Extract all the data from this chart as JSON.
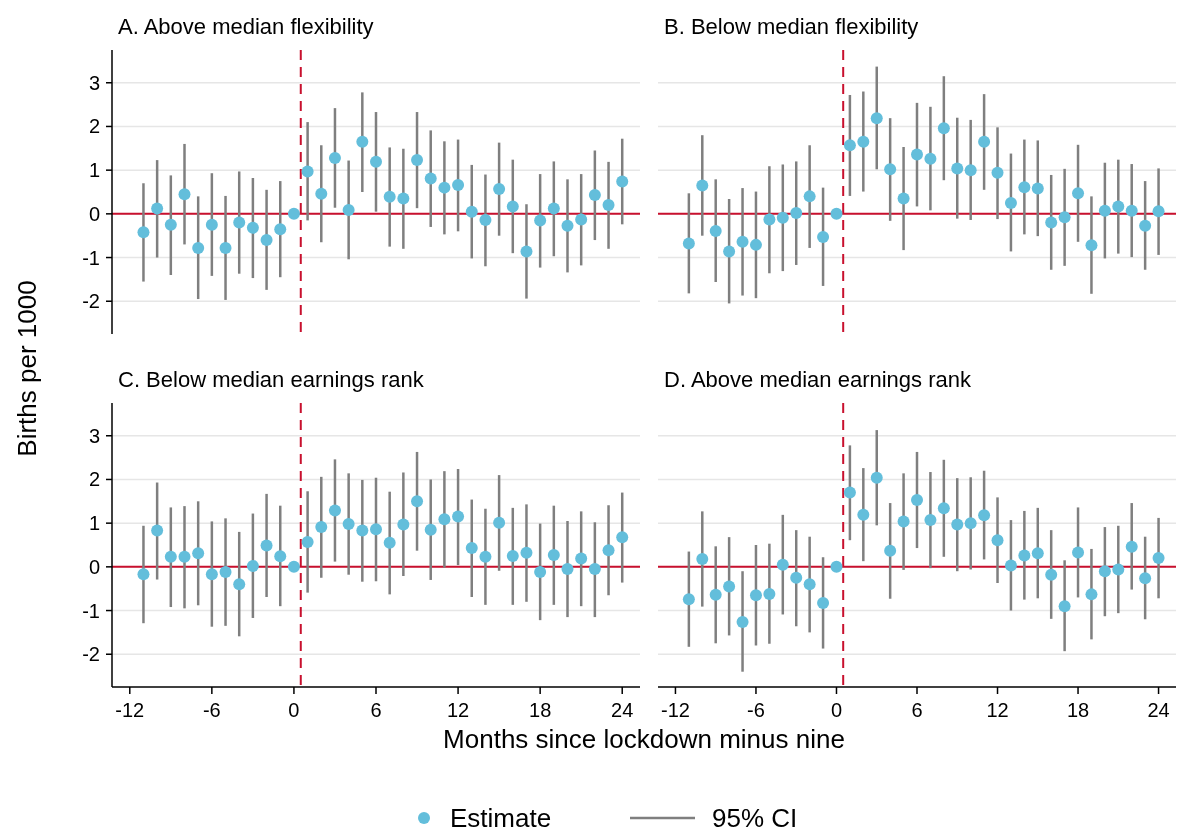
{
  "chart_data": [
    {
      "type": "scatter",
      "title": "A. Above median flexibility",
      "ylabel": "Births per 1000",
      "legend": "bottom",
      "annotations": [
        "95% CI"
      ],
      "marker": "circle",
      "grid": "y",
      "tick_labels": "y",
      "xlim": [
        -13.3,
        25.3
      ],
      "ylim": [
        -2.75,
        3.75
      ],
      "yticks": [
        -2,
        -1,
        0,
        1,
        2,
        3
      ],
      "ref_lines": [
        {
          "axis": "y",
          "value": 0,
          "color": "#c8102e",
          "line_style": "solid"
        },
        {
          "axis": "x",
          "value": 0.5,
          "color": "#c8102e",
          "line_style": "dashed"
        }
      ],
      "x": [
        -11,
        -10,
        -9,
        -8,
        -7,
        -6,
        -5,
        -4,
        -3,
        -2,
        -1,
        0,
        1,
        2,
        3,
        4,
        5,
        6,
        7,
        8,
        9,
        10,
        11,
        12,
        13,
        14,
        15,
        16,
        17,
        18,
        19,
        20,
        21,
        22,
        23,
        24
      ],
      "series": [
        {
          "name": "Estimate",
          "color": "#63bedb",
          "values": [
            -0.42,
            0.12,
            -0.25,
            0.45,
            -0.78,
            -0.25,
            -0.78,
            -0.2,
            -0.32,
            -0.6,
            -0.35,
            0,
            0.97,
            0.46,
            1.28,
            0.09,
            1.65,
            1.19,
            0.39,
            0.35,
            1.23,
            0.81,
            0.6,
            0.66,
            0.05,
            -0.14,
            0.57,
            0.17,
            -0.86,
            -0.15,
            0.12,
            -0.27,
            -0.13,
            0.43,
            0.2,
            0.74
          ],
          "errors": [
            [
              -1.55,
              0.7
            ],
            [
              -1.0,
              1.23
            ],
            [
              -1.4,
              0.88
            ],
            [
              -0.7,
              1.6
            ],
            [
              -1.95,
              0.4
            ],
            [
              -1.42,
              0.93
            ],
            [
              -1.97,
              0.41
            ],
            [
              -1.37,
              0.97
            ],
            [
              -1.47,
              0.82
            ],
            [
              -1.74,
              0.55
            ],
            [
              -1.45,
              0.75
            ],
            null,
            [
              -0.15,
              2.1
            ],
            [
              -0.65,
              1.57
            ],
            [
              0.14,
              2.42
            ],
            [
              -1.04,
              1.22
            ],
            [
              0.5,
              2.78
            ],
            [
              0.05,
              2.33
            ],
            [
              -0.75,
              1.52
            ],
            [
              -0.8,
              1.49
            ],
            [
              0.13,
              2.33
            ],
            [
              -0.3,
              1.91
            ],
            [
              -0.47,
              1.66
            ],
            [
              -0.4,
              1.7
            ],
            [
              -1.02,
              1.12
            ],
            [
              -1.2,
              0.9
            ],
            [
              -0.5,
              1.63
            ],
            [
              -0.9,
              1.24
            ],
            [
              -1.94,
              0.22
            ],
            [
              -1.23,
              0.91
            ],
            [
              -0.97,
              1.2
            ],
            [
              -1.34,
              0.79
            ],
            [
              -1.18,
              0.91
            ],
            [
              -0.6,
              1.45
            ],
            [
              -0.8,
              1.19
            ],
            [
              -0.24,
              1.72
            ]
          ]
        }
      ]
    },
    {
      "type": "scatter",
      "title": "B. Below median flexibility",
      "marker": "circle",
      "grid": "y",
      "tick_labels": false,
      "xlim": [
        -13.3,
        25.3
      ],
      "ylim": [
        -2.75,
        3.75
      ],
      "yticks": [
        -2,
        -1,
        0,
        1,
        2,
        3
      ],
      "ref_lines": [
        {
          "axis": "y",
          "value": 0,
          "color": "#c8102e",
          "line_style": "solid"
        },
        {
          "axis": "x",
          "value": 0.5,
          "color": "#c8102e",
          "line_style": "dashed"
        }
      ],
      "x": [
        -11,
        -10,
        -9,
        -8,
        -7,
        -6,
        -5,
        -4,
        -3,
        -2,
        -1,
        0,
        1,
        2,
        3,
        4,
        5,
        6,
        7,
        8,
        9,
        10,
        11,
        12,
        13,
        14,
        15,
        16,
        17,
        18,
        19,
        20,
        21,
        22,
        23,
        24
      ],
      "series": [
        {
          "color": "#63bedb",
          "values": [
            -0.68,
            0.65,
            -0.39,
            -0.86,
            -0.64,
            -0.71,
            -0.13,
            -0.09,
            0.02,
            0.4,
            -0.53,
            0,
            1.57,
            1.65,
            2.19,
            1.02,
            0.35,
            1.36,
            1.26,
            1.96,
            1.04,
            1.0,
            1.65,
            0.94,
            0.25,
            0.61,
            0.58,
            -0.2,
            -0.08,
            0.47,
            -0.72,
            0.07,
            0.17,
            0.07,
            -0.27,
            0.06
          ],
          "errors": [
            [
              -1.82,
              0.47
            ],
            [
              -0.5,
              1.8
            ],
            [
              -1.56,
              0.79
            ],
            [
              -2.05,
              0.34
            ],
            [
              -1.87,
              0.59
            ],
            [
              -1.93,
              0.51
            ],
            [
              -1.36,
              1.09
            ],
            [
              -1.31,
              1.13
            ],
            [
              -1.17,
              1.2
            ],
            [
              -0.78,
              1.57
            ],
            [
              -1.65,
              0.6
            ],
            null,
            [
              0.41,
              2.72
            ],
            [
              0.51,
              2.8
            ],
            [
              1.02,
              3.37
            ],
            [
              -0.16,
              2.19
            ],
            [
              -0.83,
              1.53
            ],
            [
              0.17,
              2.54
            ],
            [
              0.08,
              2.45
            ],
            [
              0.77,
              3.15
            ],
            [
              -0.11,
              2.2
            ],
            [
              -0.14,
              2.15
            ],
            [
              0.55,
              2.74
            ],
            [
              -0.12,
              1.98
            ],
            [
              -0.86,
              1.38
            ],
            [
              -0.47,
              1.7
            ],
            [
              -0.51,
              1.68
            ],
            [
              -1.28,
              0.89
            ],
            [
              -1.19,
              1.03
            ],
            [
              -0.64,
              1.58
            ],
            [
              -1.83,
              0.4
            ],
            [
              -1.02,
              1.17
            ],
            [
              -0.91,
              1.24
            ],
            [
              -0.99,
              1.14
            ],
            [
              -1.28,
              0.75
            ],
            [
              -0.94,
              1.04
            ]
          ]
        }
      ]
    },
    {
      "type": "scatter",
      "title": "C. Below median earnings rank",
      "xlabel": "Months since lockdown minus nine",
      "marker": "circle",
      "grid": "y",
      "xlim": [
        -13.3,
        25.3
      ],
      "ylim": [
        -2.75,
        3.75
      ],
      "xticks": [
        -12,
        -6,
        0,
        6,
        12,
        18,
        24
      ],
      "yticks": [
        -2,
        -1,
        0,
        1,
        2,
        3
      ],
      "ref_lines": [
        {
          "axis": "y",
          "value": 0,
          "color": "#c8102e",
          "line_style": "solid"
        },
        {
          "axis": "x",
          "value": 0.5,
          "color": "#c8102e",
          "line_style": "dashed"
        }
      ],
      "x": [
        -11,
        -10,
        -9,
        -8,
        -7,
        -6,
        -5,
        -4,
        -3,
        -2,
        -1,
        0,
        1,
        2,
        3,
        4,
        5,
        6,
        7,
        8,
        9,
        10,
        11,
        12,
        13,
        14,
        15,
        16,
        17,
        18,
        19,
        20,
        21,
        22,
        23,
        24
      ],
      "series": [
        {
          "color": "#63bedb",
          "values": [
            -0.17,
            0.83,
            0.23,
            0.23,
            0.31,
            -0.17,
            -0.12,
            -0.4,
            0.02,
            0.49,
            0.24,
            0,
            0.57,
            0.91,
            1.29,
            0.98,
            0.83,
            0.86,
            0.55,
            0.97,
            1.5,
            0.85,
            1.09,
            1.15,
            0.43,
            0.23,
            1.01,
            0.25,
            0.32,
            -0.12,
            0.27,
            -0.05,
            0.19,
            -0.05,
            0.38,
            0.68
          ],
          "errors": [
            [
              -1.29,
              0.94
            ],
            [
              -0.29,
              1.93
            ],
            [
              -0.92,
              1.36
            ],
            [
              -0.95,
              1.39
            ],
            [
              -0.88,
              1.5
            ],
            [
              -1.37,
              1.04
            ],
            [
              -1.35,
              1.11
            ],
            [
              -1.59,
              0.8
            ],
            [
              -1.17,
              1.22
            ],
            [
              -0.69,
              1.67
            ],
            [
              -0.9,
              1.4
            ],
            null,
            [
              -0.59,
              1.73
            ],
            [
              -0.25,
              2.06
            ],
            [
              0.12,
              2.46
            ],
            [
              -0.18,
              2.14
            ],
            [
              -0.34,
              1.99
            ],
            [
              -0.33,
              2.04
            ],
            [
              -0.63,
              1.72
            ],
            [
              -0.21,
              2.16
            ],
            [
              0.37,
              2.63
            ],
            [
              -0.3,
              2.0
            ],
            [
              -0.02,
              2.19
            ],
            [
              0.04,
              2.24
            ],
            [
              -0.69,
              1.54
            ],
            [
              -0.87,
              1.33
            ],
            [
              -0.09,
              2.1
            ],
            [
              -0.87,
              1.35
            ],
            [
              -0.8,
              1.43
            ],
            [
              -1.22,
              0.99
            ],
            [
              -0.87,
              1.4
            ],
            [
              -1.15,
              1.05
            ],
            [
              -0.9,
              1.27
            ],
            [
              -1.15,
              1.02
            ],
            [
              -0.65,
              1.41
            ],
            [
              -0.36,
              1.7
            ]
          ]
        }
      ]
    },
    {
      "type": "scatter",
      "title": "D. Above median earnings rank",
      "marker": "circle",
      "grid": "y",
      "tick_labels": "x",
      "xlim": [
        -13.3,
        25.3
      ],
      "ylim": [
        -2.75,
        3.75
      ],
      "xticks": [
        -12,
        -6,
        0,
        6,
        12,
        18,
        24
      ],
      "yticks": [
        -2,
        -1,
        0,
        1,
        2,
        3
      ],
      "ref_lines": [
        {
          "axis": "y",
          "value": 0,
          "color": "#c8102e",
          "line_style": "solid"
        },
        {
          "axis": "x",
          "value": 0.5,
          "color": "#c8102e",
          "line_style": "dashed"
        }
      ],
      "x": [
        -11,
        -10,
        -9,
        -8,
        -7,
        -6,
        -5,
        -4,
        -3,
        -2,
        -1,
        0,
        1,
        2,
        3,
        4,
        5,
        6,
        7,
        8,
        9,
        10,
        11,
        12,
        13,
        14,
        15,
        16,
        17,
        18,
        19,
        20,
        21,
        22,
        23,
        24
      ],
      "series": [
        {
          "color": "#63bedb",
          "values": [
            -0.74,
            0.18,
            -0.64,
            -0.45,
            -1.26,
            -0.65,
            -0.62,
            0.05,
            -0.25,
            -0.4,
            -0.83,
            0,
            1.7,
            1.19,
            2.04,
            0.37,
            1.04,
            1.53,
            1.07,
            1.34,
            0.97,
            1.0,
            1.18,
            0.61,
            0.03,
            0.26,
            0.31,
            -0.18,
            -0.9,
            0.33,
            -0.63,
            -0.1,
            -0.06,
            0.46,
            -0.26,
            0.2
          ],
          "errors": [
            [
              -1.83,
              0.35
            ],
            [
              -0.91,
              1.27
            ],
            [
              -1.75,
              0.47
            ],
            [
              -1.57,
              0.68
            ],
            [
              -2.4,
              -0.1
            ],
            [
              -1.8,
              0.5
            ],
            [
              -1.76,
              0.53
            ],
            [
              -1.09,
              1.19
            ],
            [
              -1.36,
              0.84
            ],
            [
              -1.5,
              0.69
            ],
            [
              -1.87,
              0.22
            ],
            null,
            [
              0.61,
              2.78
            ],
            [
              0.13,
              2.26
            ],
            [
              0.95,
              3.13
            ],
            [
              -0.73,
              1.46
            ],
            [
              -0.07,
              2.14
            ],
            [
              0.43,
              2.63
            ],
            [
              -0.03,
              2.17
            ],
            [
              0.23,
              2.45
            ],
            [
              -0.1,
              2.03
            ],
            [
              -0.06,
              2.05
            ],
            [
              0.17,
              2.2
            ],
            [
              -0.37,
              1.59
            ],
            [
              -1.0,
              1.07
            ],
            [
              -0.75,
              1.28
            ],
            [
              -0.72,
              1.35
            ],
            [
              -1.19,
              0.84
            ],
            [
              -1.93,
              0.15
            ],
            [
              -0.7,
              1.36
            ],
            [
              -1.66,
              0.41
            ],
            [
              -1.13,
              0.91
            ],
            [
              -1.06,
              0.94
            ],
            [
              -0.52,
              1.46
            ],
            [
              -1.2,
              0.69
            ],
            [
              -0.72,
              1.12
            ]
          ]
        }
      ]
    }
  ]
}
